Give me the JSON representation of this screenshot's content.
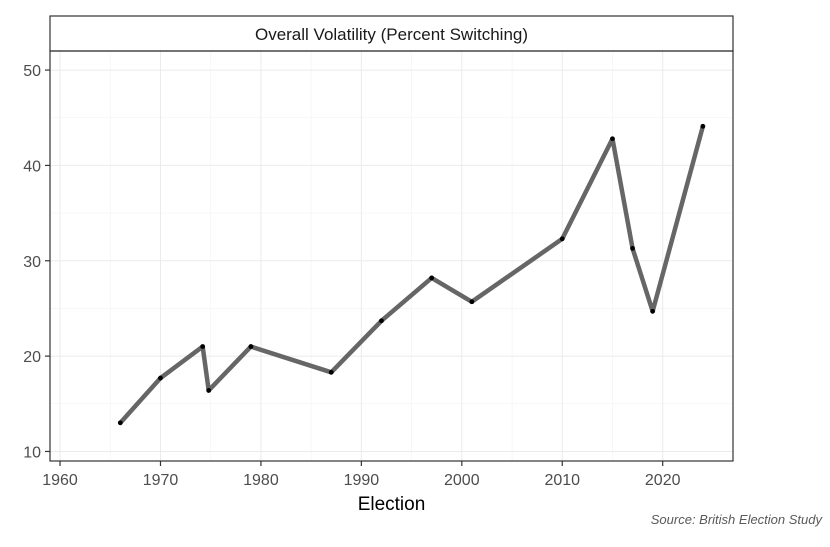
{
  "chart_data": {
    "type": "line",
    "title": "Overall Volatility (Percent Switching)",
    "xlabel": "Election",
    "ylabel": "",
    "xlim": [
      1959,
      2027
    ],
    "ylim": [
      9,
      52
    ],
    "xticks": [
      1960,
      1970,
      1980,
      1990,
      2000,
      2010,
      2020
    ],
    "yticks": [
      10,
      20,
      30,
      40,
      50
    ],
    "grid": true,
    "legend": "none",
    "line_color": "#666666",
    "point_color": "#000000",
    "series": [
      {
        "x": [
          1966,
          1970,
          1974.2,
          1974.8,
          1979,
          1987,
          1992,
          1997,
          2001,
          2010,
          2015,
          2017,
          2019,
          2024
        ],
        "y": [
          13.0,
          17.7,
          21.0,
          16.4,
          21.0,
          18.3,
          23.7,
          28.2,
          25.7,
          32.3,
          42.8,
          31.3,
          24.7,
          44.1
        ]
      }
    ]
  },
  "source": "Source: British Election Study"
}
